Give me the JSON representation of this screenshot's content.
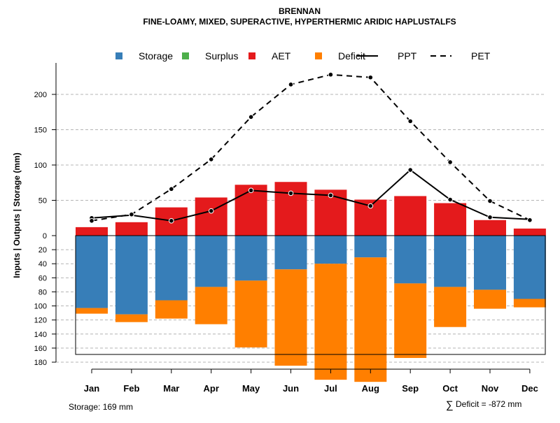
{
  "chart_data": {
    "type": "bar",
    "title": "BRENNAN",
    "subtitle": "FINE-LOAMY, MIXED, SUPERACTIVE, HYPERTHERMIC ARIDIC HAPLUSTALFS",
    "ylabel": "Inputs | Outputs | Storage    (mm)",
    "categories": [
      "Jan",
      "Feb",
      "Mar",
      "Apr",
      "May",
      "Jun",
      "Jul",
      "Aug",
      "Sep",
      "Oct",
      "Nov",
      "Dec"
    ],
    "y_upper_ticks": [
      0,
      50,
      100,
      150,
      200
    ],
    "y_lower_ticks": [
      0,
      20,
      40,
      60,
      80,
      100,
      120,
      140,
      160,
      180
    ],
    "upper_ylim": [
      0,
      230
    ],
    "lower_ylim": [
      0,
      180
    ],
    "colors": {
      "Storage": "#377eb8",
      "Surplus": "#4daf4a",
      "AET": "#e41a1c",
      "Deficit": "#ff7f00"
    },
    "legend": [
      {
        "name": "Storage",
        "kind": "box",
        "color": "#377eb8"
      },
      {
        "name": "Surplus",
        "kind": "box",
        "color": "#4daf4a"
      },
      {
        "name": "AET",
        "kind": "box",
        "color": "#e41a1c"
      },
      {
        "name": "Deficit",
        "kind": "box",
        "color": "#ff7f00"
      },
      {
        "name": "PPT",
        "kind": "solid"
      },
      {
        "name": "PET",
        "kind": "dashed"
      }
    ],
    "series": [
      {
        "name": "AET",
        "values": [
          12,
          19,
          40,
          54,
          72,
          76,
          65,
          51,
          56,
          46,
          22,
          10
        ]
      },
      {
        "name": "Storage",
        "values": [
          103,
          112,
          92,
          73,
          64,
          48,
          40,
          31,
          68,
          73,
          77,
          90
        ]
      },
      {
        "name": "Deficit",
        "values": [
          8,
          11,
          26,
          53,
          95,
          137,
          165,
          177,
          106,
          57,
          27,
          12
        ]
      },
      {
        "name": "PPT",
        "values": [
          25,
          29,
          21,
          35,
          64,
          60,
          57,
          42,
          93,
          51,
          26,
          23
        ]
      },
      {
        "name": "PET",
        "values": [
          21,
          30,
          66,
          108,
          168,
          214,
          228,
          224,
          162,
          104,
          49,
          22
        ]
      }
    ],
    "storage_box_depth": 169,
    "storage_note": "Storage: 169 mm",
    "deficit_note_symbol": "∑",
    "deficit_note": "Deficit = -872 mm"
  }
}
